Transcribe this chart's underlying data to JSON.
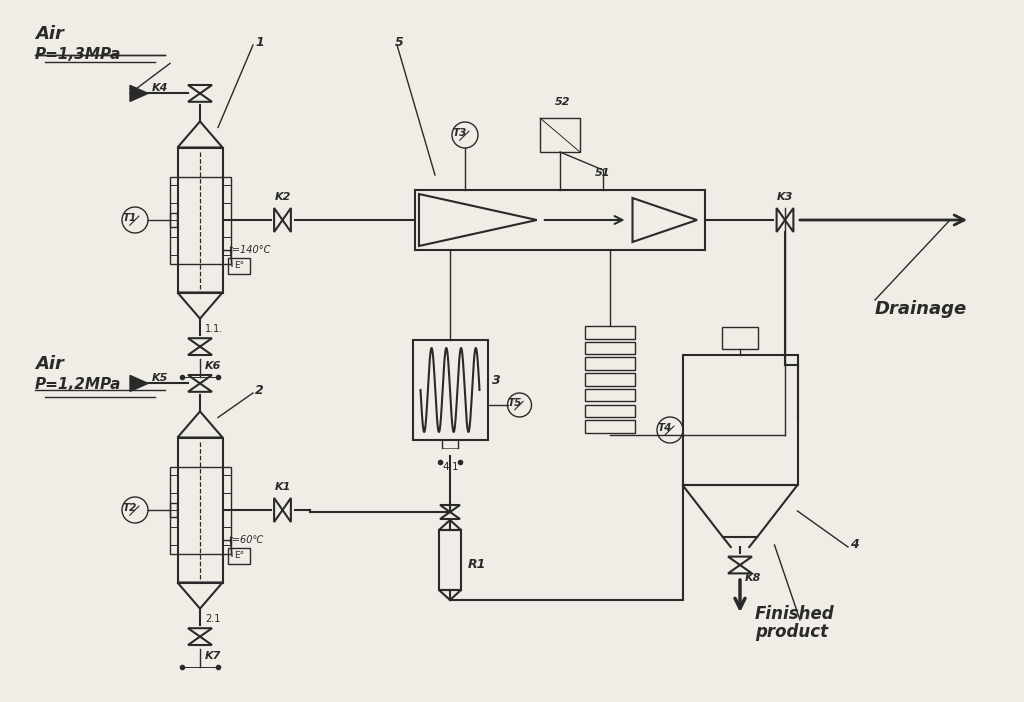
{
  "bg_color": "#f0ede6",
  "lc": "#2a2a2a",
  "labels": {
    "air1": "Air",
    "p1": "P=1,3MPa",
    "air2": "Air",
    "p2": "P=1,2MPa",
    "drainage": "Drainage",
    "finished1": "Finished",
    "finished2": "product",
    "t140": "t=140°C",
    "t60": "t=60℃",
    "n1": "1",
    "n2": "2",
    "n3": "3",
    "n4": "4",
    "n5": "5",
    "n51": "51",
    "n52": "52",
    "k1": "K1",
    "k2": "K2",
    "k3": "K3",
    "k4": "K4",
    "k5": "K5",
    "k6": "K6",
    "k7": "K7",
    "k8": "K8",
    "t1": "T1",
    "t2": "T2",
    "t3": "T3",
    "t4": "T4",
    "t5": "T5",
    "r1": "R1",
    "l1a": "1.1.",
    "l2a": "2.1",
    "l4a": "4.1"
  }
}
